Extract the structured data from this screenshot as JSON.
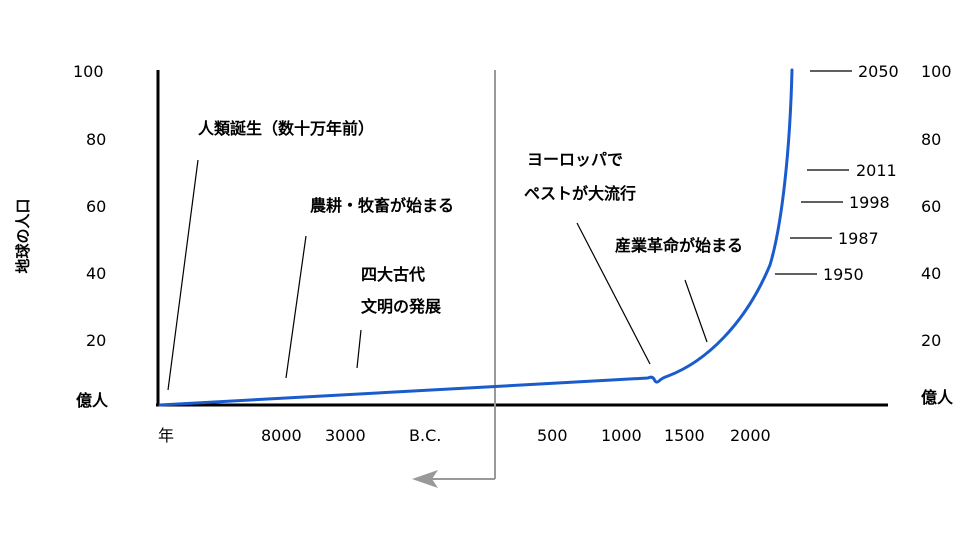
{
  "chart_data": {
    "type": "line",
    "ylabel": "地球の人口",
    "y_unit": "億人",
    "y_ticks": [
      "100",
      "80",
      "60",
      "40",
      "20"
    ],
    "ylim": [
      0,
      100
    ],
    "x_tick_labels": [
      "年",
      "8000",
      "3000",
      "B.C.",
      "500",
      "1000",
      "1500",
      "2000"
    ],
    "series": [
      {
        "points": [
          {
            "x": "数十万年前",
            "y": 0
          },
          {
            "x": "1300",
            "y": 8
          },
          {
            "x": "1500",
            "y": 9
          },
          {
            "x": "1650",
            "y": 14
          },
          {
            "x": "1800",
            "y": 20
          },
          {
            "x": "1900",
            "y": 27
          },
          {
            "x": "1950",
            "y": 40
          },
          {
            "x": "1987",
            "y": 50
          },
          {
            "x": "1998",
            "y": 60
          },
          {
            "x": "2011",
            "y": 70
          },
          {
            "x": "2050",
            "y": 100
          }
        ]
      }
    ],
    "year_markers": [
      "2050",
      "2011",
      "1998",
      "1987",
      "1950"
    ],
    "annotations": [
      "人類誕生（数十万年前）",
      "農耕・牧畜が始まる",
      "四大古代",
      "文明の発展",
      "ヨーロッパで",
      "ペストが大流行",
      "産業革命が始まる"
    ],
    "grid": false
  },
  "colors": {
    "line": "#1a5ccc",
    "axis": "#000000",
    "divider": "#999999",
    "arrow": "#999999"
  }
}
